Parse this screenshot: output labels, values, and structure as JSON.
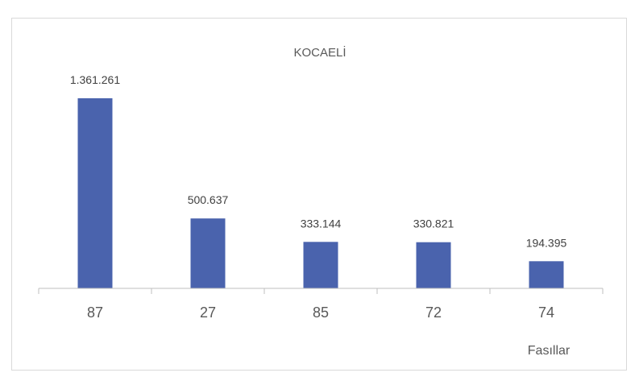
{
  "chart_data": {
    "type": "bar",
    "title": "KOCAELİ",
    "categories": [
      "87",
      "27",
      "85",
      "72",
      "74"
    ],
    "values": [
      1361261,
      500637,
      333144,
      330821,
      194395
    ],
    "data_labels": [
      "1.361.261",
      "500.637",
      "333.144",
      "330.821",
      "194.395"
    ],
    "xlabel": "Fasıllar",
    "ylabel": "",
    "ylim": [
      0,
      1500000
    ],
    "grid": false,
    "legend": "none",
    "bar_color": "#4a63ad"
  }
}
